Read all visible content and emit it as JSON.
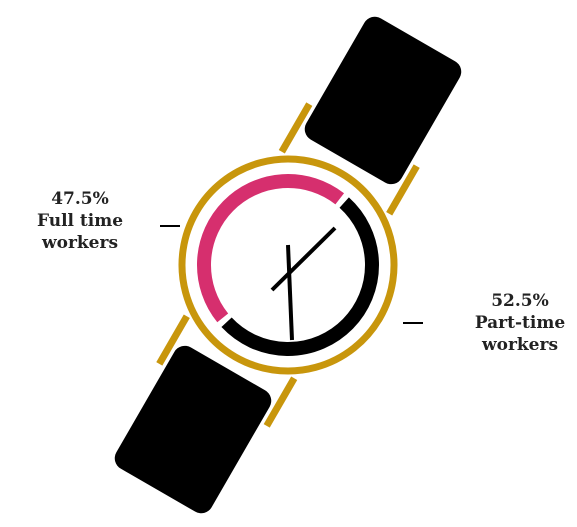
{
  "chart_data": {
    "type": "donut",
    "categories": [
      "Full time workers",
      "Part-time workers"
    ],
    "values": [
      47.5,
      52.5
    ],
    "value_labels": [
      "47.5%",
      "52.5%"
    ],
    "colors": [
      "#d62f6e",
      "#000000"
    ]
  }
}
